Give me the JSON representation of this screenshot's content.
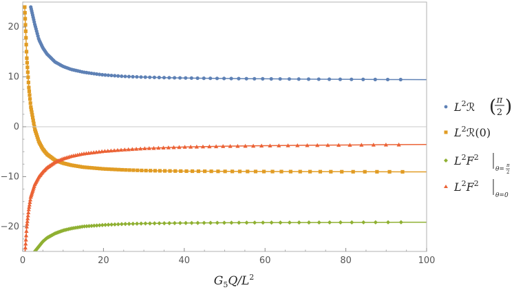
{
  "chart_data": {
    "type": "scatter",
    "title": "",
    "xlabel": "G5Q/L2",
    "ylabel": "",
    "xlim": [
      0,
      100
    ],
    "ylim": [
      -25,
      25
    ],
    "x_ticks": [
      0,
      20,
      40,
      60,
      80,
      100
    ],
    "y_ticks": [
      -20,
      -10,
      0,
      10,
      20
    ],
    "x_tick_labels": [
      "0",
      "20",
      "40",
      "60",
      "80",
      "100"
    ],
    "y_tick_labels": [
      "−20",
      "−10",
      "0",
      "10",
      "20"
    ],
    "grid": false,
    "legend_position": "right",
    "series": [
      {
        "name": "L2R(π/2)",
        "color": "#5e81b5",
        "marker": "circle",
        "points": [
          [
            2,
            24
          ],
          [
            3,
            20.5
          ],
          [
            4,
            17.5
          ],
          [
            5,
            15.8
          ],
          [
            6,
            14.6
          ],
          [
            8,
            13.0
          ],
          [
            10,
            12.1
          ],
          [
            12,
            11.5
          ],
          [
            15,
            10.95
          ],
          [
            18,
            10.6
          ],
          [
            20,
            10.4
          ],
          [
            25,
            10.1
          ],
          [
            30,
            9.95
          ],
          [
            35,
            9.85
          ],
          [
            40,
            9.78
          ],
          [
            45,
            9.72
          ],
          [
            50,
            9.68
          ],
          [
            55,
            9.64
          ],
          [
            60,
            9.61
          ],
          [
            65,
            9.58
          ],
          [
            70,
            9.55
          ],
          [
            75,
            9.53
          ],
          [
            80,
            9.51
          ],
          [
            85,
            9.49
          ],
          [
            90,
            9.47
          ],
          [
            94.5,
            9.46
          ],
          [
            100,
            9.44
          ]
        ]
      },
      {
        "name": "L2R(0)",
        "color": "#e19c24",
        "marker": "square",
        "points": [
          [
            0.5,
            24
          ],
          [
            1,
            14
          ],
          [
            1.5,
            8
          ],
          [
            2,
            4
          ],
          [
            3,
            -0.5
          ],
          [
            4,
            -3
          ],
          [
            5,
            -4.5
          ],
          [
            6,
            -5.5
          ],
          [
            8,
            -6.7
          ],
          [
            10,
            -7.3
          ],
          [
            12,
            -7.7
          ],
          [
            15,
            -8.1
          ],
          [
            20,
            -8.45
          ],
          [
            25,
            -8.65
          ],
          [
            30,
            -8.78
          ],
          [
            35,
            -8.85
          ],
          [
            40,
            -8.9
          ],
          [
            50,
            -8.95
          ],
          [
            60,
            -8.98
          ],
          [
            70,
            -9.0
          ],
          [
            80,
            -9.02
          ],
          [
            90,
            -9.03
          ],
          [
            94.5,
            -9.04
          ],
          [
            100,
            -9.05
          ]
        ]
      },
      {
        "name": "L2F2|θ=π/2",
        "color": "#8fb032",
        "marker": "diamond",
        "points": [
          [
            3,
            -25
          ],
          [
            4,
            -24
          ],
          [
            5,
            -23
          ],
          [
            6,
            -22.3
          ],
          [
            8,
            -21.4
          ],
          [
            10,
            -20.8
          ],
          [
            12,
            -20.4
          ],
          [
            15,
            -20.0
          ],
          [
            20,
            -19.7
          ],
          [
            25,
            -19.5
          ],
          [
            30,
            -19.4
          ],
          [
            35,
            -19.35
          ],
          [
            40,
            -19.3
          ],
          [
            50,
            -19.25
          ],
          [
            60,
            -19.22
          ],
          [
            70,
            -19.2
          ],
          [
            80,
            -19.18
          ],
          [
            90,
            -19.16
          ],
          [
            94.5,
            -19.15
          ],
          [
            100,
            -19.14
          ]
        ]
      },
      {
        "name": "L2F2|θ=0",
        "color": "#eb6235",
        "marker": "triangle",
        "points": [
          [
            0.6,
            -25
          ],
          [
            1,
            -20
          ],
          [
            1.5,
            -16.5
          ],
          [
            2,
            -14
          ],
          [
            3,
            -11.5
          ],
          [
            4,
            -10
          ],
          [
            5,
            -9
          ],
          [
            6,
            -8.2
          ],
          [
            8,
            -7.1
          ],
          [
            10,
            -6.4
          ],
          [
            12,
            -5.9
          ],
          [
            15,
            -5.4
          ],
          [
            20,
            -4.9
          ],
          [
            25,
            -4.6
          ],
          [
            30,
            -4.35
          ],
          [
            35,
            -4.2
          ],
          [
            40,
            -4.05
          ],
          [
            50,
            -3.9
          ],
          [
            60,
            -3.8
          ],
          [
            70,
            -3.72
          ],
          [
            80,
            -3.66
          ],
          [
            90,
            -3.6
          ],
          [
            94.5,
            -3.58
          ],
          [
            100,
            -3.56
          ]
        ]
      }
    ]
  }
}
